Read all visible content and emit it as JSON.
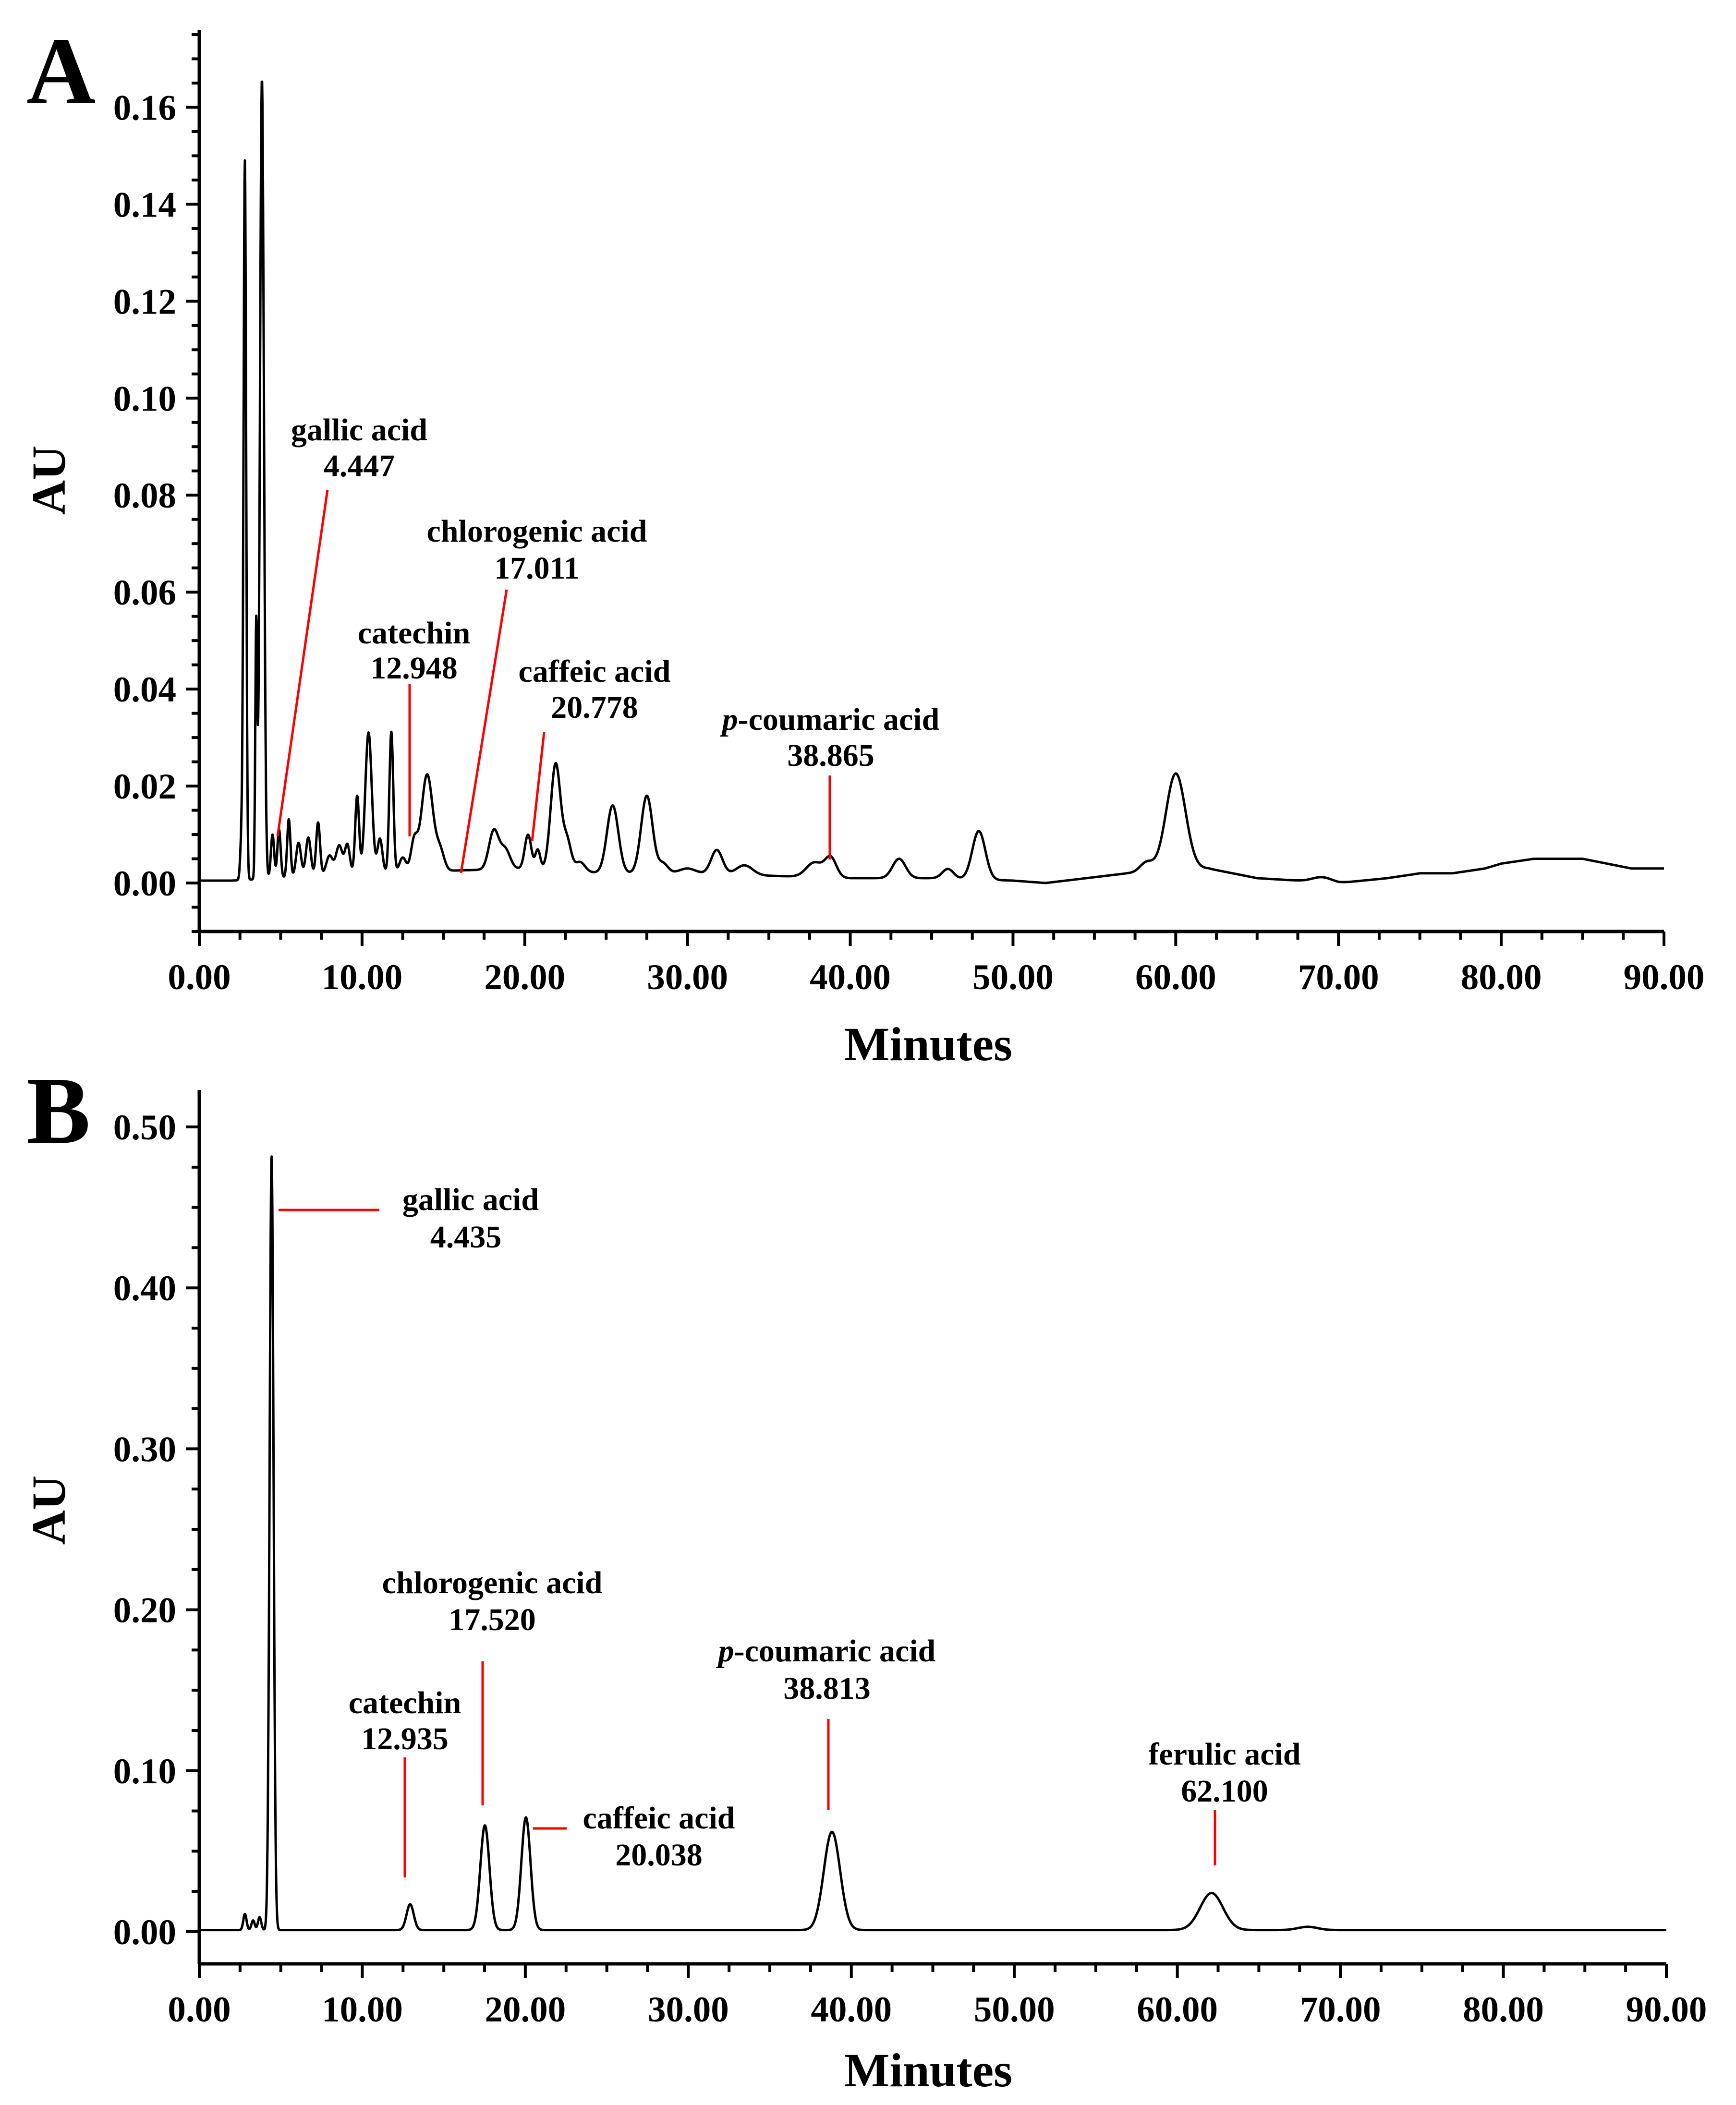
{
  "chart_data": [
    {
      "panel": "A",
      "type": "line",
      "title": "",
      "xlabel": "Minutes",
      "ylabel": "AU",
      "xlim": [
        0,
        90
      ],
      "ylim": [
        -0.01,
        0.175
      ],
      "grid": false,
      "x_ticks": [
        "0.00",
        "10.00",
        "20.00",
        "30.00",
        "40.00",
        "50.00",
        "60.00",
        "70.00",
        "80.00",
        "90.00"
      ],
      "y_ticks": [
        "0.00",
        "0.02",
        "0.04",
        "0.06",
        "0.08",
        "0.10",
        "0.12",
        "0.14",
        "0.16"
      ],
      "baseline": [
        [
          0,
          0.0005
        ],
        [
          2.0,
          0.0005
        ],
        [
          10,
          0.002
        ],
        [
          20,
          0.003
        ],
        [
          25,
          0.002
        ],
        [
          30,
          0.002
        ],
        [
          35,
          0.0015
        ],
        [
          40,
          0.001
        ],
        [
          45,
          0.001
        ],
        [
          50,
          0.0005
        ],
        [
          52,
          0.0
        ],
        [
          57,
          0.002
        ],
        [
          62,
          0.003
        ],
        [
          65,
          0.001
        ],
        [
          70,
          0.0
        ],
        [
          73,
          0.001
        ],
        [
          75,
          0.002
        ],
        [
          77,
          0.002
        ],
        [
          79,
          0.003
        ],
        [
          80,
          0.004
        ],
        [
          82,
          0.005
        ],
        [
          85,
          0.005
        ],
        [
          88,
          0.003
        ],
        [
          90,
          0.003
        ]
      ],
      "peaks": [
        {
          "t": 2.6,
          "h": 0.009,
          "w": 0.08
        },
        {
          "t": 2.8,
          "h": 0.148,
          "w": 0.08
        },
        {
          "t": 3.5,
          "h": 0.052,
          "w": 0.06
        },
        {
          "t": 3.85,
          "h": 0.165,
          "w": 0.12
        },
        {
          "t": 4.5,
          "h": 0.009,
          "w": 0.1
        },
        {
          "t": 4.9,
          "h": 0.01,
          "w": 0.1
        },
        {
          "t": 5.5,
          "h": 0.012,
          "w": 0.1
        },
        {
          "t": 6.1,
          "h": 0.007,
          "w": 0.15
        },
        {
          "t": 6.7,
          "h": 0.008,
          "w": 0.15
        },
        {
          "t": 7.3,
          "h": 0.011,
          "w": 0.12
        },
        {
          "t": 8.0,
          "h": 0.004,
          "w": 0.2
        },
        {
          "t": 8.6,
          "h": 0.006,
          "w": 0.2
        },
        {
          "t": 9.1,
          "h": 0.006,
          "w": 0.15
        },
        {
          "t": 9.7,
          "h": 0.016,
          "w": 0.12
        },
        {
          "t": 10.4,
          "h": 0.029,
          "w": 0.2
        },
        {
          "t": 11.1,
          "h": 0.007,
          "w": 0.15
        },
        {
          "t": 11.8,
          "h": 0.029,
          "w": 0.12
        },
        {
          "t": 12.5,
          "h": 0.003,
          "w": 0.2
        },
        {
          "t": 13.2,
          "h": 0.006,
          "w": 0.2
        },
        {
          "t": 14.0,
          "h": 0.02,
          "w": 0.35
        },
        {
          "t": 14.8,
          "h": 0.004,
          "w": 0.25
        },
        {
          "t": 18.1,
          "h": 0.008,
          "w": 0.3
        },
        {
          "t": 18.8,
          "h": 0.004,
          "w": 0.3
        },
        {
          "t": 20.2,
          "h": 0.007,
          "w": 0.2
        },
        {
          "t": 20.8,
          "h": 0.004,
          "w": 0.15
        },
        {
          "t": 21.9,
          "h": 0.022,
          "w": 0.3
        },
        {
          "t": 22.6,
          "h": 0.006,
          "w": 0.25
        },
        {
          "t": 23.4,
          "h": 0.002,
          "w": 0.3
        },
        {
          "t": 25.4,
          "h": 0.014,
          "w": 0.35
        },
        {
          "t": 27.5,
          "h": 0.016,
          "w": 0.35
        },
        {
          "t": 28.5,
          "h": 0.002,
          "w": 0.3
        },
        {
          "t": 30.0,
          "h": 0.001,
          "w": 0.5
        },
        {
          "t": 31.8,
          "h": 0.005,
          "w": 0.35
        },
        {
          "t": 33.5,
          "h": 0.002,
          "w": 0.5
        },
        {
          "t": 37.8,
          "h": 0.003,
          "w": 0.5
        },
        {
          "t": 38.8,
          "h": 0.004,
          "w": 0.35
        },
        {
          "t": 43.0,
          "h": 0.004,
          "w": 0.4
        },
        {
          "t": 46.0,
          "h": 0.002,
          "w": 0.35
        },
        {
          "t": 47.9,
          "h": 0.01,
          "w": 0.4
        },
        {
          "t": 58.2,
          "h": 0.002,
          "w": 0.4
        },
        {
          "t": 60.0,
          "h": 0.02,
          "w": 0.6
        },
        {
          "t": 69.0,
          "h": 0.001,
          "w": 0.6
        }
      ],
      "annotations": [
        {
          "line1": "gallic acid",
          "line2": "4.447",
          "rt": 4.447
        },
        {
          "line1": "catechin",
          "line2": "12.948",
          "rt": 12.948
        },
        {
          "line1": "chlorogenic acid",
          "line2": "17.011",
          "rt": 17.011
        },
        {
          "line1": "caffeic acid",
          "line2": "20.778",
          "rt": 20.778
        },
        {
          "line1_italic": "p",
          "line1": "-coumaric acid",
          "line2": "38.865",
          "rt": 38.865
        }
      ]
    },
    {
      "panel": "B",
      "type": "line",
      "title": "",
      "xlabel": "Minutes",
      "ylabel": "AU",
      "xlim": [
        0,
        90
      ],
      "ylim": [
        -0.02,
        0.52
      ],
      "grid": false,
      "x_ticks": [
        "0.00",
        "10.00",
        "20.00",
        "30.00",
        "40.00",
        "50.00",
        "60.00",
        "70.00",
        "80.00",
        "90.00"
      ],
      "y_ticks": [
        "0.00",
        "0.10",
        "0.20",
        "0.30",
        "0.40",
        "0.50"
      ],
      "baseline": [
        [
          0,
          0.001
        ],
        [
          10,
          0.001
        ],
        [
          30,
          0.001
        ],
        [
          50,
          0.001
        ],
        [
          70,
          0.001
        ],
        [
          90,
          0.001
        ]
      ],
      "peaks": [
        {
          "t": 2.8,
          "h": 0.01,
          "w": 0.1
        },
        {
          "t": 3.3,
          "h": 0.006,
          "w": 0.1
        },
        {
          "t": 3.7,
          "h": 0.008,
          "w": 0.1
        },
        {
          "t": 4.435,
          "h": 0.481,
          "w": 0.12
        },
        {
          "t": 12.935,
          "h": 0.016,
          "w": 0.22
        },
        {
          "t": 17.52,
          "h": 0.065,
          "w": 0.28
        },
        {
          "t": 20.038,
          "h": 0.07,
          "w": 0.28
        },
        {
          "t": 38.813,
          "h": 0.061,
          "w": 0.5
        },
        {
          "t": 62.1,
          "h": 0.023,
          "w": 0.7
        },
        {
          "t": 68.0,
          "h": 0.002,
          "w": 0.6
        }
      ],
      "annotations": [
        {
          "line1": "gallic acid",
          "line2": "4.435",
          "rt": 4.435
        },
        {
          "line1": "catechin",
          "line2": "12.935",
          "rt": 12.935
        },
        {
          "line1": "chlorogenic acid",
          "line2": "17.520",
          "rt": 17.52
        },
        {
          "line1": "caffeic acid",
          "line2": "20.038",
          "rt": 20.038
        },
        {
          "line1_italic": "p",
          "line1": "-coumaric acid",
          "line2": "38.813",
          "rt": 38.813
        },
        {
          "line1": "ferulic acid",
          "line2": "62.100",
          "rt": 62.1
        }
      ]
    }
  ]
}
